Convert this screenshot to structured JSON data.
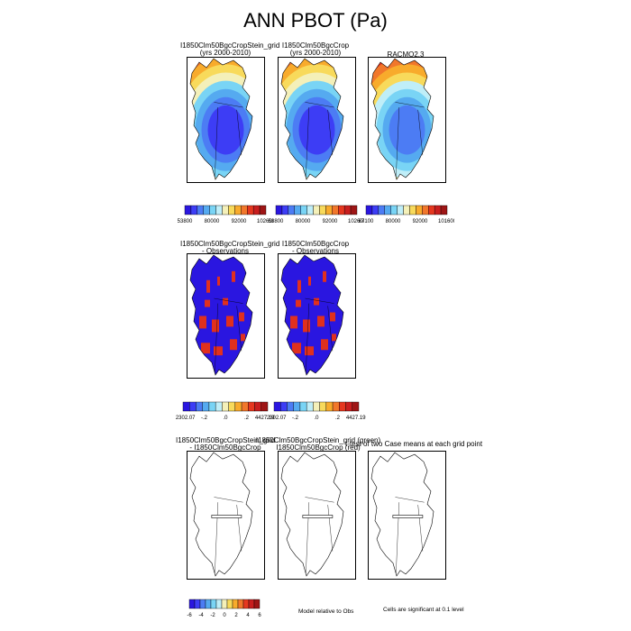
{
  "title": "ANN PBOT (Pa)",
  "palette": [
    "#2a16e0",
    "#3d3df5",
    "#4c7cf4",
    "#55aaf0",
    "#79d4f5",
    "#bfeef8",
    "#f4f0b9",
    "#f8da5b",
    "#f8ab2c",
    "#f1772b",
    "#e5371f",
    "#c81e1e",
    "#9e1515"
  ],
  "rows": [
    {
      "panels": [
        {
          "title_lines": [
            "I1850Clm50BgcCropStein_grid",
            "(yrs 2000-2010)"
          ],
          "colorbar_labels": [
            "53800",
            "80000",
            "92000",
            "102600"
          ],
          "style": "model"
        },
        {
          "title_lines": [
            "I1850Clm50BgcCrop",
            "(yrs 2000-2010)"
          ],
          "colorbar_labels": [
            "53800",
            "80000",
            "92000",
            "102600"
          ],
          "style": "model"
        },
        {
          "title_lines": [
            "RACMO2.3"
          ],
          "colorbar_labels": [
            "67100",
            "80000",
            "92000",
            "101600"
          ],
          "style": "obs"
        }
      ]
    },
    {
      "panels": [
        {
          "title_lines": [
            "I1850Clm50BgcCropStein_grid",
            "- Observations"
          ],
          "colorbar_labels": [
            "-12302.07",
            "-.2",
            ".0",
            ".2",
            "4427.1953"
          ],
          "style": "diff"
        },
        {
          "title_lines": [
            "I1850Clm50BgcCrop",
            "- Observations"
          ],
          "colorbar_labels": [
            "-12302.07",
            "-.2",
            ".0",
            ".2",
            "4427.1953"
          ],
          "style": "diff"
        }
      ]
    },
    {
      "panels": [
        {
          "title_lines": [
            "I1850Clm50BgcCropStein_grid",
            "- I1850Clm50BgcCrop"
          ],
          "style": "outline"
        },
        {
          "title_lines": [
            "I1850Clm50BgcCropStein_grid (green)",
            "I1850Clm50BgcCrop (red)"
          ],
          "style": "outline"
        },
        {
          "title_lines": [
            "t-test of two Case means at each grid point"
          ],
          "style": "outline"
        }
      ],
      "colorbar_labels": [
        "-6",
        "-4",
        "-2",
        "0",
        "2",
        "4",
        "6"
      ],
      "notes": [
        "Model relative to Obs",
        "Cells are significant at 0.1 level"
      ]
    }
  ]
}
